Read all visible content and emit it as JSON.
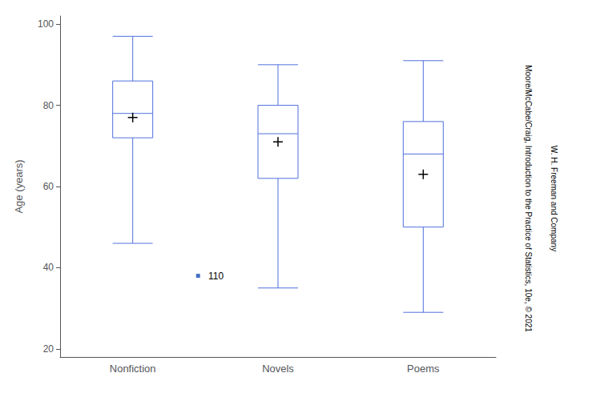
{
  "chart_data": {
    "type": "box",
    "categories": [
      "Nonfiction",
      "Novels",
      "Poems"
    ],
    "values": [
      [
        46,
        72,
        78,
        86,
        97
      ],
      [
        35,
        62,
        73,
        80,
        90
      ],
      [
        29,
        50,
        68,
        76,
        91
      ]
    ],
    "means": [
      77,
      71,
      63
    ],
    "ylabel": "Age (years)",
    "ylim": [
      18,
      102
    ],
    "yticks": [
      20,
      40,
      60,
      80,
      100
    ],
    "grid": false,
    "annotations": [
      {
        "text": "110",
        "y": 38,
        "color": "#4472c4"
      },
      {
        "text": "Moore/McCabe/Craig, Introduction to the Practice of Statistics, 10e, © 2021"
      },
      {
        "text": "W. H. Freeman and Company"
      }
    ]
  }
}
